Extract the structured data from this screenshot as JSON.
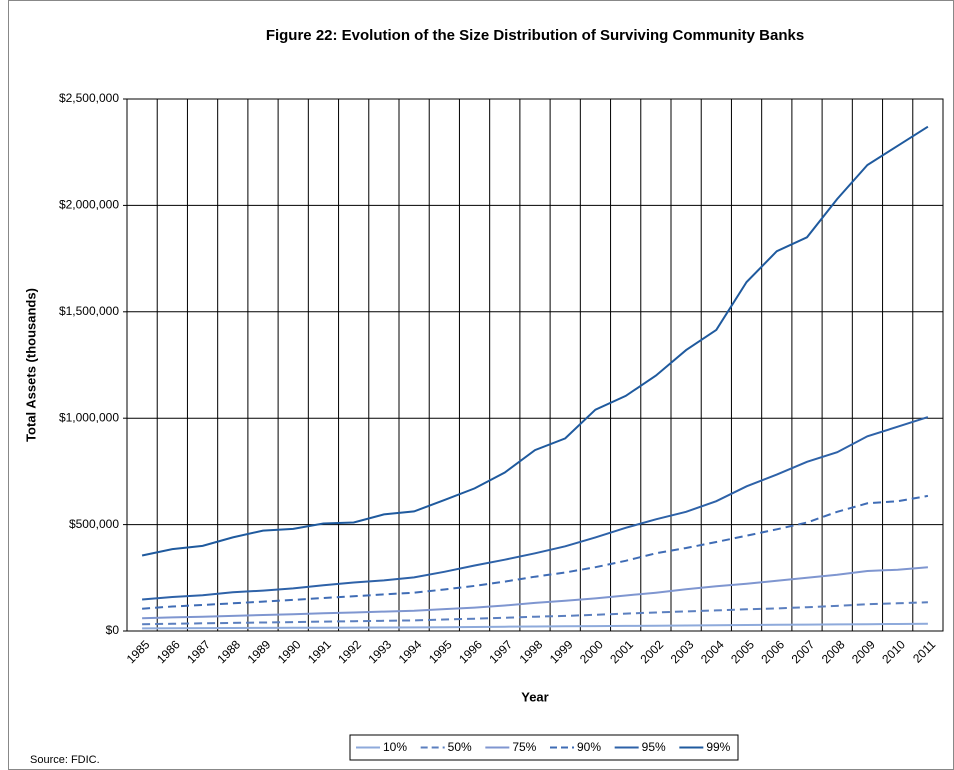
{
  "chart_data": {
    "type": "line",
    "title": "Figure 22: Evolution of the Size Distribution of Surviving Community Banks",
    "x_label": "Year",
    "y_label": "Total Assets (thousands)",
    "source": "Source: FDIC.",
    "categories": [
      "1985",
      "1986",
      "1987",
      "1988",
      "1989",
      "1990",
      "1991",
      "1992",
      "1993",
      "1994",
      "1995",
      "1996",
      "1997",
      "1998",
      "1999",
      "2000",
      "2001",
      "2002",
      "2003",
      "2004",
      "2005",
      "2006",
      "2007",
      "2008",
      "2009",
      "2010",
      "2011"
    ],
    "ylim": [
      0,
      2500000
    ],
    "yticks": [
      {
        "value": 0,
        "label": "$0"
      },
      {
        "value": 500000,
        "label": "$500,000"
      },
      {
        "value": 1000000,
        "label": "$1,000,000"
      },
      {
        "value": 1500000,
        "label": "$1,500,000"
      },
      {
        "value": 2000000,
        "label": "$2,000,000"
      },
      {
        "value": 2500000,
        "label": "$2,500,000"
      }
    ],
    "grid": true,
    "legend": "bottom",
    "series": [
      {
        "name": "10%",
        "color": "#8eaadb",
        "dash": false,
        "values": [
          12000,
          13000,
          13500,
          14000,
          14500,
          15000,
          15500,
          16000,
          16500,
          17000,
          18000,
          19000,
          20000,
          21000,
          22000,
          23000,
          24000,
          25000,
          26000,
          27000,
          28000,
          29000,
          30000,
          31000,
          32000,
          33000,
          34000
        ]
      },
      {
        "name": "50%",
        "color": "#5b7fbf",
        "dash": true,
        "values": [
          32000,
          34000,
          36000,
          38000,
          40000,
          42000,
          44000,
          46000,
          48000,
          50000,
          54000,
          58000,
          62000,
          67000,
          71000,
          76000,
          82000,
          87000,
          92000,
          97000,
          102000,
          106000,
          112000,
          118000,
          126000,
          130000,
          135000
        ]
      },
      {
        "name": "75%",
        "color": "#7f96d0",
        "dash": false,
        "values": [
          60000,
          64000,
          67000,
          71000,
          75000,
          79000,
          83000,
          87000,
          91000,
          95000,
          103000,
          110000,
          120000,
          132000,
          142000,
          153000,
          167000,
          180000,
          196000,
          210000,
          222000,
          236000,
          250000,
          264000,
          282000,
          288000,
          300000
        ]
      },
      {
        "name": "90%",
        "color": "#3f6cb5",
        "dash": true,
        "values": [
          105000,
          115000,
          122000,
          130000,
          138000,
          146000,
          155000,
          163000,
          172000,
          180000,
          195000,
          212000,
          232000,
          255000,
          275000,
          300000,
          330000,
          365000,
          390000,
          418000,
          448000,
          478000,
          510000,
          560000,
          600000,
          610000,
          635000
        ]
      },
      {
        "name": "95%",
        "color": "#2e62a8",
        "dash": false,
        "values": [
          148000,
          160000,
          168000,
          182000,
          190000,
          200000,
          215000,
          228000,
          238000,
          252000,
          278000,
          308000,
          335000,
          365000,
          398000,
          440000,
          485000,
          525000,
          560000,
          610000,
          680000,
          735000,
          795000,
          840000,
          915000,
          960000,
          1005000
        ]
      },
      {
        "name": "99%",
        "color": "#1f5a9e",
        "dash": false,
        "values": [
          355000,
          385000,
          400000,
          440000,
          472000,
          480000,
          505000,
          510000,
          548000,
          562000,
          615000,
          670000,
          745000,
          850000,
          905000,
          1040000,
          1105000,
          1200000,
          1320000,
          1415000,
          1640000,
          1785000,
          1850000,
          2030000,
          2190000,
          2280000,
          2370000
        ]
      }
    ]
  }
}
